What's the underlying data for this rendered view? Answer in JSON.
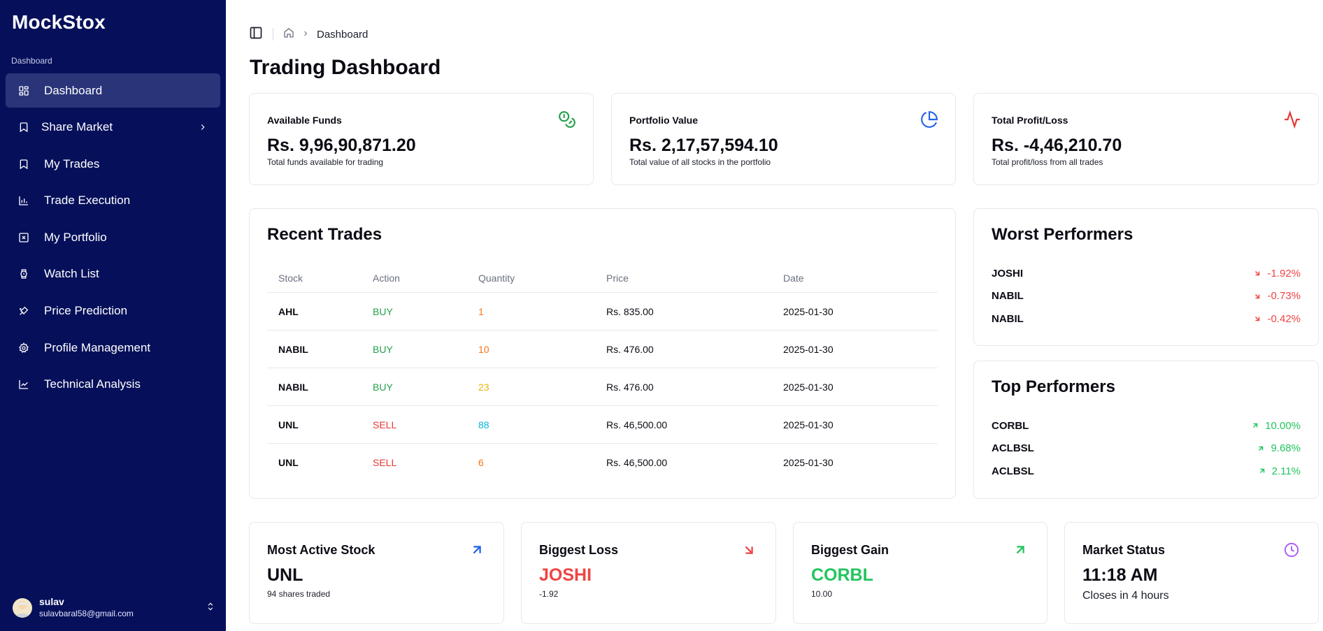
{
  "app": {
    "name": "MockStox"
  },
  "sidebar": {
    "group_label": "Dashboard",
    "items": [
      {
        "label": "Dashboard",
        "icon": "dashboard-icon"
      },
      {
        "label": "Share Market",
        "icon": "bookmark-icon"
      },
      {
        "label": "My Trades",
        "icon": "bookmark-icon"
      },
      {
        "label": "Trade Execution",
        "icon": "chart-icon"
      },
      {
        "label": "My Portfolio",
        "icon": "square-x-icon"
      },
      {
        "label": "Watch List",
        "icon": "watch-icon"
      },
      {
        "label": "Price Prediction",
        "icon": "prediction-icon"
      },
      {
        "label": "Profile Management",
        "icon": "gear-icon"
      },
      {
        "label": "Technical Analysis",
        "icon": "line-chart-icon"
      }
    ],
    "user": {
      "name": "sulav",
      "email": "sulavbaral58@gmail.com"
    }
  },
  "header": {
    "breadcrumb": "Dashboard",
    "title": "Trading Dashboard"
  },
  "stats": {
    "funds": {
      "label": "Available Funds",
      "value": "Rs. 9,96,90,871.20",
      "sub": "Total funds available for trading",
      "icon": "coins-icon"
    },
    "portfolio": {
      "label": "Portfolio Value",
      "value": "Rs. 2,17,57,594.10",
      "sub": "Total value of all stocks in the portfolio",
      "icon": "pie-chart-icon"
    },
    "pnl": {
      "label": "Total Profit/Loss",
      "value": "Rs. -4,46,210.70",
      "sub": "Total profit/loss from all trades",
      "icon": "activity-icon"
    }
  },
  "recent_trades": {
    "title": "Recent Trades",
    "columns": [
      "Stock",
      "Action",
      "Quantity",
      "Price",
      "Date"
    ],
    "rows": [
      {
        "stock": "AHL",
        "action": "BUY",
        "quantity": "1",
        "price": "Rs. 835.00",
        "date": "2025-01-30"
      },
      {
        "stock": "NABIL",
        "action": "BUY",
        "quantity": "10",
        "price": "Rs. 476.00",
        "date": "2025-01-30"
      },
      {
        "stock": "NABIL",
        "action": "BUY",
        "quantity": "23",
        "price": "Rs. 476.00",
        "date": "2025-01-30"
      },
      {
        "stock": "UNL",
        "action": "SELL",
        "quantity": "88",
        "price": "Rs. 46,500.00",
        "date": "2025-01-30"
      },
      {
        "stock": "UNL",
        "action": "SELL",
        "quantity": "6",
        "price": "Rs. 46,500.00",
        "date": "2025-01-30"
      }
    ]
  },
  "worst": {
    "title": "Worst Performers",
    "items": [
      {
        "name": "JOSHI",
        "change": "-1.92%"
      },
      {
        "name": "NABIL",
        "change": "-0.73%"
      },
      {
        "name": "NABIL",
        "change": "-0.42%"
      }
    ]
  },
  "top": {
    "title": "Top Performers",
    "items": [
      {
        "name": "CORBL",
        "change": "10.00%"
      },
      {
        "name": "ACLBSL",
        "change": "9.68%"
      },
      {
        "name": "ACLBSL",
        "change": "2.11%"
      }
    ]
  },
  "bottom": {
    "active": {
      "title": "Most Active Stock",
      "value": "UNL",
      "sub": "94 shares traded"
    },
    "loss": {
      "title": "Biggest Loss",
      "value": "JOSHI",
      "sub": "-1.92"
    },
    "gain": {
      "title": "Biggest Gain",
      "value": "CORBL",
      "sub": "10.00"
    },
    "market": {
      "title": "Market Status",
      "value": "11:18 AM",
      "sub": "Closes in 4 hours"
    }
  },
  "colors": {
    "sidebar_bg": "#06105a",
    "sidebar_active": "#2a3479",
    "buy": "#22a04b",
    "sell": "#e53935",
    "gain": "#22c55e",
    "loss": "#ef4444",
    "qty_orange": "#f97316",
    "qty_amber": "#eab308",
    "qty_cyan": "#06b6d4"
  }
}
